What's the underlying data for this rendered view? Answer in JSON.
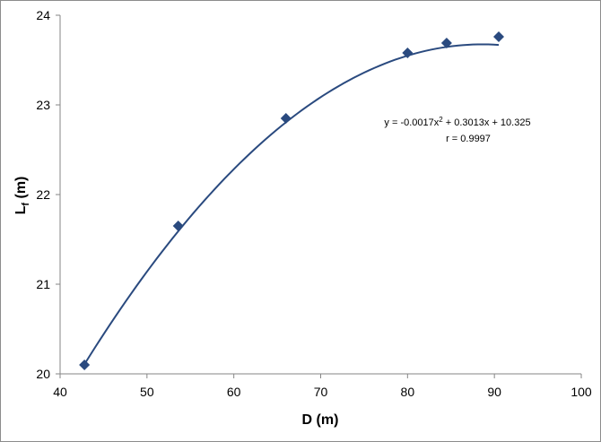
{
  "chart_data": {
    "type": "scatter",
    "title": "",
    "xlabel": "D (m)",
    "ylabel_main": "L",
    "ylabel_sub": "f",
    "ylabel_unit": " (m)",
    "xlim": [
      40,
      100
    ],
    "ylim": [
      20,
      24
    ],
    "xticks": [
      40,
      50,
      60,
      70,
      80,
      90,
      100
    ],
    "yticks": [
      20,
      21,
      22,
      23,
      24
    ],
    "grid": false,
    "legend": "none",
    "marker": "diamond",
    "series": [
      {
        "x": [
          42.8,
          53.6,
          66.0,
          80.0,
          84.5,
          90.5
        ],
        "y": [
          20.1,
          21.65,
          22.85,
          23.58,
          23.69,
          23.76
        ]
      }
    ],
    "trendline": {
      "type": "polynomial",
      "order": 2,
      "coefficients": [
        -0.0017,
        0.3013,
        10.325
      ],
      "equation_prefix": "y = -0.0017x",
      "equation_sup": "2",
      "equation_suffix": " + 0.3013x + 10.325",
      "r_text": "r = 0.9997"
    },
    "colors": {
      "marker": "#2a4a7f",
      "trendline": "#2a4a7f",
      "axis": "#868686"
    }
  }
}
